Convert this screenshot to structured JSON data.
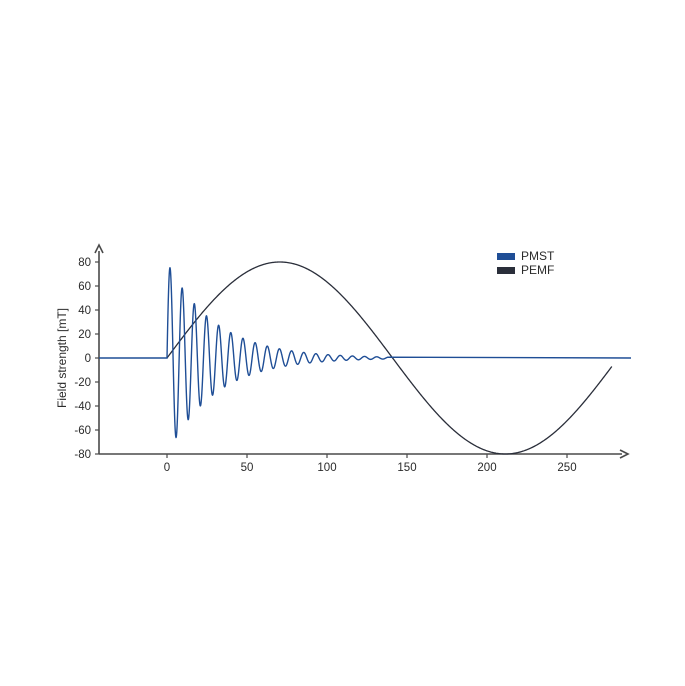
{
  "chart_data": {
    "type": "line",
    "ylabel": "Field strength [mT]",
    "xlabel": "",
    "xlim": [
      -40,
      290
    ],
    "ylim": [
      -80,
      85
    ],
    "x_ticks": [
      0,
      50,
      100,
      150,
      200,
      250
    ],
    "y_ticks": [
      80,
      60,
      40,
      20,
      0,
      -20,
      -40,
      -60,
      -80
    ],
    "legend_position": "top-right",
    "series": [
      {
        "name": "PMST",
        "color": "#1f4e96",
        "description_shape": "damped oscillation",
        "onset": 0,
        "peak_amplitude": 80,
        "period": 7.6,
        "decay_end": 138,
        "baseline": 0,
        "x_end": 290
      },
      {
        "name": "PEMF",
        "color": "#2a2e3a",
        "description_shape": "single sine cycle",
        "onset": 0,
        "amplitude": 80,
        "period": 282,
        "baseline": 0,
        "x_end": 278
      }
    ]
  }
}
